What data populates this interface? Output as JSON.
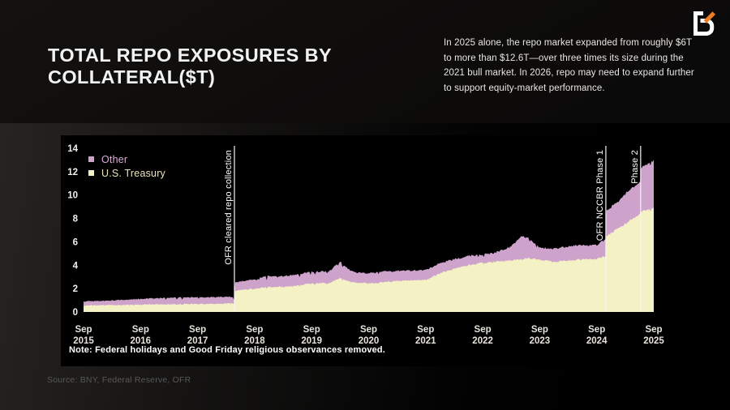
{
  "header": {
    "title": "TOTAL REPO EXPOSURES BY COLLATERAL($T)",
    "description": "In 2025 alone, the repo market expanded from roughly $6T to more than $12.6T—over three times its size during the 2021 bull market. In 2026, repo may need to expand further to support equity-market performance.",
    "logo_icon": "b-lightning-logo",
    "logo_colors": {
      "glyph": "#ffffff",
      "slash": "#ed7d23"
    }
  },
  "footer": {
    "source": "Source: BNY, Federal Reserve, OFR"
  },
  "chart_data": {
    "type": "area",
    "stacked": true,
    "background": "#000000",
    "grid": false,
    "ylim": [
      0,
      14
    ],
    "yticks": [
      0,
      2,
      4,
      6,
      8,
      10,
      12,
      14
    ],
    "x_axis": {
      "unit": "years since Sep 2015",
      "range": [
        0,
        10
      ],
      "ticks": [
        {
          "t": 0,
          "top": "Sep",
          "bottom": "2015"
        },
        {
          "t": 1,
          "top": "Sep",
          "bottom": "2016"
        },
        {
          "t": 2,
          "top": "Sep",
          "bottom": "2017"
        },
        {
          "t": 3,
          "top": "Sep",
          "bottom": "2018"
        },
        {
          "t": 4,
          "top": "Sep",
          "bottom": "2019"
        },
        {
          "t": 5,
          "top": "Sep",
          "bottom": "2020"
        },
        {
          "t": 6,
          "top": "Sep",
          "bottom": "2021"
        },
        {
          "t": 7,
          "top": "Sep",
          "bottom": "2022"
        },
        {
          "t": 8,
          "top": "Sep",
          "bottom": "2023"
        },
        {
          "t": 9,
          "top": "Sep",
          "bottom": "2024"
        },
        {
          "t": 10,
          "top": "Sep",
          "bottom": "2025"
        }
      ]
    },
    "legend": [
      {
        "label": "Other",
        "swatch": "#cda3cb",
        "text_color": "#d8aed4"
      },
      {
        "label": "U.S. Treasury",
        "swatch": "#f4f1c5",
        "text_color": "#e9e5bd"
      }
    ],
    "series": [
      {
        "name": "U.S. Treasury",
        "color": "#f4f1c5",
        "keyframes": [
          [
            0,
            0.55
          ],
          [
            0.5,
            0.58
          ],
          [
            1,
            0.62
          ],
          [
            1.5,
            0.66
          ],
          [
            2,
            0.68
          ],
          [
            2.5,
            0.72
          ],
          [
            2.64,
            0.75
          ],
          [
            2.66,
            1.85
          ],
          [
            3,
            2.0
          ],
          [
            3.25,
            2.15
          ],
          [
            3.5,
            2.15
          ],
          [
            3.75,
            2.25
          ],
          [
            4,
            2.45
          ],
          [
            4.3,
            2.45
          ],
          [
            4.5,
            2.9
          ],
          [
            4.6,
            2.7
          ],
          [
            4.75,
            2.5
          ],
          [
            5,
            2.45
          ],
          [
            5.25,
            2.55
          ],
          [
            5.5,
            2.65
          ],
          [
            5.75,
            2.7
          ],
          [
            6,
            2.7
          ],
          [
            6.25,
            3.3
          ],
          [
            6.5,
            3.7
          ],
          [
            6.75,
            4.0
          ],
          [
            7,
            4.2
          ],
          [
            7.25,
            4.3
          ],
          [
            7.5,
            4.4
          ],
          [
            7.67,
            4.5
          ],
          [
            7.8,
            4.6
          ],
          [
            8,
            4.45
          ],
          [
            8.25,
            4.3
          ],
          [
            8.5,
            4.4
          ],
          [
            8.75,
            4.5
          ],
          [
            9,
            4.55
          ],
          [
            9.15,
            4.75
          ],
          [
            9.17,
            6.5
          ],
          [
            9.3,
            6.9
          ],
          [
            9.5,
            7.5
          ],
          [
            9.76,
            8.45
          ],
          [
            9.78,
            8.6
          ],
          [
            9.9,
            8.7
          ],
          [
            10,
            8.85
          ]
        ]
      },
      {
        "name": "Other",
        "color": "#cda3cb",
        "keyframes": [
          [
            0,
            0.35
          ],
          [
            0.5,
            0.4
          ],
          [
            1,
            0.5
          ],
          [
            1.5,
            0.55
          ],
          [
            2,
            0.58
          ],
          [
            2.5,
            0.55
          ],
          [
            2.64,
            0.55
          ],
          [
            2.66,
            0.7
          ],
          [
            3,
            0.8
          ],
          [
            3.25,
            0.95
          ],
          [
            3.5,
            0.9
          ],
          [
            3.75,
            0.95
          ],
          [
            4,
            1.0
          ],
          [
            4.3,
            1.0
          ],
          [
            4.5,
            1.4
          ],
          [
            4.6,
            1.1
          ],
          [
            4.75,
            0.9
          ],
          [
            5,
            0.85
          ],
          [
            5.25,
            0.9
          ],
          [
            5.5,
            0.85
          ],
          [
            5.75,
            0.85
          ],
          [
            6,
            0.85
          ],
          [
            6.25,
            0.9
          ],
          [
            6.5,
            0.8
          ],
          [
            6.75,
            0.8
          ],
          [
            7,
            0.7
          ],
          [
            7.25,
            0.8
          ],
          [
            7.5,
            1.2
          ],
          [
            7.67,
            2.0
          ],
          [
            7.8,
            1.7
          ],
          [
            8,
            1.05
          ],
          [
            8.25,
            1.1
          ],
          [
            8.5,
            1.2
          ],
          [
            8.75,
            1.2
          ],
          [
            9,
            1.2
          ],
          [
            9.15,
            1.45
          ],
          [
            9.17,
            2.2
          ],
          [
            9.3,
            2.2
          ],
          [
            9.5,
            2.6
          ],
          [
            9.76,
            2.7
          ],
          [
            9.78,
            3.7
          ],
          [
            9.9,
            3.9
          ],
          [
            10,
            4.0
          ]
        ]
      }
    ],
    "events": [
      {
        "t": 2.646,
        "label": "OFR cleared repo collection"
      },
      {
        "t": 9.16,
        "label": "OFR NCCBR Phase 1"
      },
      {
        "t": 9.77,
        "label": "Phase 2"
      }
    ],
    "note": "Note: Federal holidays and Good Friday religious observances removed.",
    "line_color": "#f5f5f3",
    "tick_text_color": "#e6e3dc"
  }
}
